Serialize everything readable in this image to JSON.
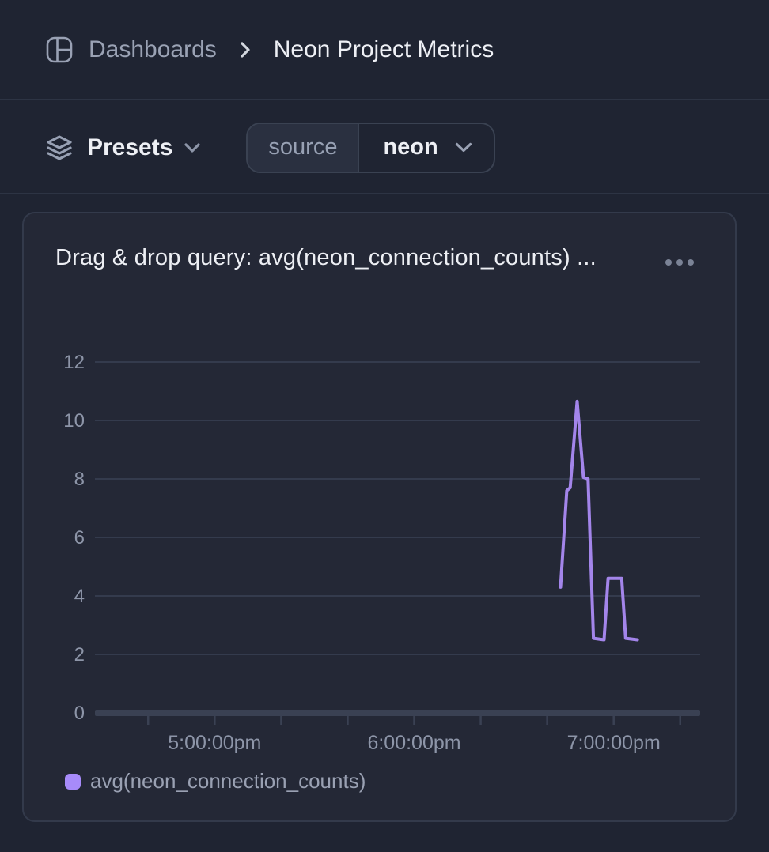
{
  "header": {
    "breadcrumb": {
      "section": "Dashboards",
      "page": "Neon Project Metrics"
    }
  },
  "toolbar": {
    "presets_label": "Presets",
    "filter": {
      "key": "source",
      "value": "neon"
    }
  },
  "card": {
    "title": "Drag & drop query: avg(neon_connection_counts) ...",
    "menu": "ellipsis"
  },
  "icons": {
    "breadcrumb_icon": "dashboard-grid",
    "breadcrumb_separator": "chevron-right",
    "presets_icon": "layers-stack",
    "dropdown_icon": "chevron-down",
    "card_menu_icon": "ellipsis-dots",
    "legend_swatch": "rounded-square"
  },
  "chart_data": {
    "type": "line",
    "title": "Drag & drop query: avg(neon_connection_counts) ...",
    "xlabel": "",
    "ylabel": "",
    "ylim": [
      0,
      12
    ],
    "y_ticks": [
      12,
      10,
      8,
      6,
      4,
      2,
      0
    ],
    "x_ticks": [
      {
        "label": "5:00:00pm",
        "minutes_since_noon": 300
      },
      {
        "label": "6:00:00pm",
        "minutes_since_noon": 360
      },
      {
        "label": "7:00:00pm",
        "minutes_since_noon": 420
      }
    ],
    "x_minor_ticks_minutes": [
      280,
      300,
      320,
      340,
      360,
      380,
      400,
      420,
      440
    ],
    "x_range_minutes": [
      264,
      446
    ],
    "grid": true,
    "legend_position": "bottom-left",
    "colors": {
      "grid": "#343b4d",
      "axis": "#3a4153",
      "tick_label": "#8d95a8",
      "accent": "#a385ea"
    },
    "series": [
      {
        "name": "avg(neon_connection_counts)",
        "color": "#a385ea",
        "swatch_color": "#a78bfa",
        "points": [
          {
            "time": "6:44pm",
            "minutes_since_noon": 404.0,
            "value": 4.3
          },
          {
            "time": "6:46pm",
            "minutes_since_noon": 405.9,
            "value": 7.6
          },
          {
            "time": "6:47pm",
            "minutes_since_noon": 406.9,
            "value": 7.7
          },
          {
            "time": "6:49pm",
            "minutes_since_noon": 409.0,
            "value": 10.65
          },
          {
            "time": "6:51pm",
            "minutes_since_noon": 410.9,
            "value": 8.05
          },
          {
            "time": "6:52pm",
            "minutes_since_noon": 412.3,
            "value": 8.0
          },
          {
            "time": "6:54pm",
            "minutes_since_noon": 413.9,
            "value": 2.55
          },
          {
            "time": "6:57pm",
            "minutes_since_noon": 417.1,
            "value": 2.5
          },
          {
            "time": "6:58pm",
            "minutes_since_noon": 418.3,
            "value": 4.6
          },
          {
            "time": "7:02pm",
            "minutes_since_noon": 422.4,
            "value": 4.6
          },
          {
            "time": "7:04pm",
            "minutes_since_noon": 423.6,
            "value": 2.55
          },
          {
            "time": "7:07pm",
            "minutes_since_noon": 427.1,
            "value": 2.5
          }
        ]
      }
    ]
  }
}
